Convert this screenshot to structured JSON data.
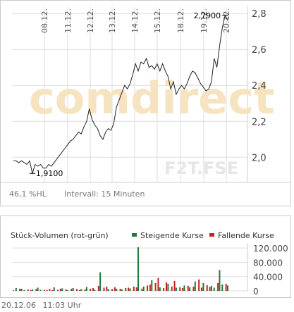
{
  "price_chart": {
    "watermark_brand": "comdirect",
    "watermark_symbol": "F2T.FSE",
    "performance_label": "46,1 %HL",
    "interval_label": "Intervall: 15 Minuten",
    "annotation_low": "1,9100",
    "annotation_high": "2,7900"
  },
  "volume_chart": {
    "title": "Stück-Volumen (rot-grün)",
    "legend_rising": "Steigende Kurse",
    "legend_falling": "Fallende Kurse"
  },
  "footer": {
    "date": "20.12.06",
    "time": "11:03 Uhr"
  },
  "colors": {
    "rising": "#1e7a3c",
    "falling": "#c0241e",
    "line": "#222222",
    "grid": "#dddddd"
  },
  "chart_data": [
    {
      "type": "line",
      "x_tick_labels": [
        "08.12.",
        "11.12.",
        "12.12.",
        "13.12.",
        "14.12.",
        "15.12.",
        "18.12.",
        "19.12.",
        "20.12."
      ],
      "y_tick_labels": [
        "2,0",
        "2,2",
        "2,4",
        "2,6",
        "2,8"
      ],
      "y_ticks": [
        2.0,
        2.2,
        2.4,
        2.6,
        2.8
      ],
      "ylim": [
        1.86,
        2.84
      ],
      "grid": true,
      "y_axis_side": "right",
      "series": [
        {
          "values": [
            1.98,
            1.98,
            1.97,
            1.98,
            1.97,
            1.96,
            1.98,
            1.91,
            1.96,
            1.95,
            1.96,
            1.94,
            1.94,
            1.96,
            1.95,
            1.97,
            1.99,
            2.01,
            2.03,
            2.05,
            2.07,
            2.09,
            2.1,
            2.12,
            2.14,
            2.13,
            2.17,
            2.2,
            2.27,
            2.21,
            2.18,
            2.16,
            2.12,
            2.1,
            2.14,
            2.16,
            2.15,
            2.19,
            2.28,
            2.32,
            2.36,
            2.4,
            2.38,
            2.41,
            2.46,
            2.52,
            2.48,
            2.53,
            2.52,
            2.55,
            2.5,
            2.51,
            2.49,
            2.52,
            2.48,
            2.52,
            2.48,
            2.45,
            2.38,
            2.42,
            2.35,
            2.38,
            2.4,
            2.38,
            2.41,
            2.45,
            2.48,
            2.47,
            2.44,
            2.41,
            2.39,
            2.37,
            2.38,
            2.42,
            2.55,
            2.5,
            2.62,
            2.72,
            2.79,
            2.76
          ]
        }
      ],
      "annotations": [
        {
          "label": "1,9100",
          "x_index": 7,
          "y": 1.91
        },
        {
          "label": "2,7900",
          "x_index": 78,
          "y": 2.79
        }
      ]
    },
    {
      "type": "bar",
      "y_tick_labels": [
        "0",
        "40.000",
        "80.000",
        "120.000"
      ],
      "y_ticks": [
        0,
        40000,
        80000,
        120000
      ],
      "ylim": [
        0,
        130000
      ],
      "y_axis_side": "right",
      "series": [
        {
          "name": "Steigende Kurse",
          "values": [
            1500,
            8000,
            0,
            6000,
            2000,
            0,
            0,
            4000,
            0,
            9000,
            3000,
            0,
            0,
            0,
            0,
            10000,
            0,
            0,
            7000,
            0,
            2000,
            0,
            8000,
            0,
            0,
            5000,
            0,
            11000,
            0,
            0,
            3000,
            0,
            52000,
            0,
            0,
            5000,
            0,
            0,
            6000,
            0,
            4000,
            0,
            0,
            7000,
            0,
            0,
            122000,
            0,
            12000,
            0,
            0,
            30000,
            0,
            0,
            10000,
            0,
            0,
            20000,
            0,
            0,
            9000,
            0,
            0,
            15000,
            0,
            10000,
            0,
            26000,
            0,
            0,
            22000,
            0,
            0,
            14000,
            9000,
            0,
            58000,
            18000,
            0,
            15000
          ]
        },
        {
          "name": "Fallende Kurse",
          "values": [
            0,
            0,
            6000,
            0,
            0,
            4000,
            2000,
            0,
            5000,
            0,
            0,
            3000,
            2000,
            5000,
            2000,
            0,
            3000,
            6000,
            0,
            4000,
            0,
            6000,
            0,
            5000,
            2000,
            0,
            4000,
            0,
            6000,
            8000,
            0,
            14000,
            0,
            9000,
            12000,
            0,
            5000,
            10000,
            0,
            6000,
            0,
            8000,
            9000,
            0,
            12000,
            10000,
            0,
            6000,
            0,
            15000,
            18000,
            0,
            22000,
            36000,
            0,
            8000,
            24000,
            0,
            12000,
            28000,
            0,
            10000,
            8000,
            0,
            14000,
            0,
            12000,
            0,
            32000,
            9000,
            0,
            16000,
            11000,
            0,
            0,
            22000,
            0,
            0,
            20000,
            0
          ]
        }
      ]
    }
  ]
}
